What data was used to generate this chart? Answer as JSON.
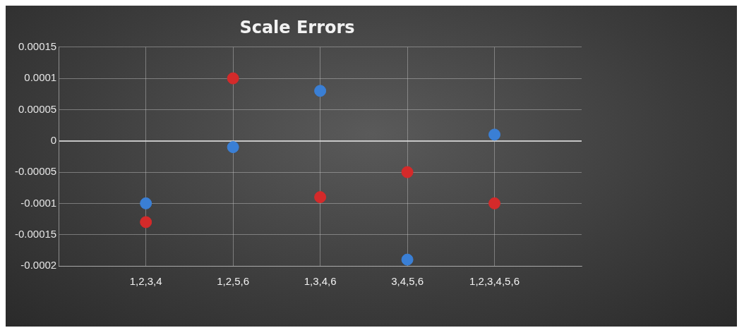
{
  "chart_data": {
    "type": "scatter",
    "title": "Scale Errors",
    "categories": [
      "1,2,3,4",
      "1,2,5,6",
      "1,3,4,6",
      "3,4,5,6",
      "1,2,3,4,5,6"
    ],
    "series": [
      {
        "color": "#3a7fd5",
        "values": [
          -0.0001,
          -1e-05,
          8e-05,
          -0.00019,
          1e-05
        ]
      },
      {
        "color": "#d42a2a",
        "values": [
          -0.00013,
          0.0001,
          -9e-05,
          -5e-05,
          -0.0001
        ]
      }
    ],
    "ylim": [
      -0.0002,
      0.00015
    ],
    "yticks": [
      -0.0002,
      -0.00015,
      -0.0001,
      {
        "value": -5e-05,
        "label": "-0.00005"
      },
      0,
      {
        "value": 5e-05,
        "label": "0.00005"
      },
      0.0001,
      0.00015
    ],
    "grid": true,
    "legend": false,
    "marker": "circle"
  }
}
